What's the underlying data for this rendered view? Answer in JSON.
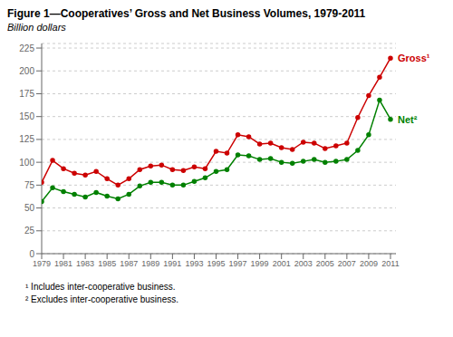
{
  "chart_data": {
    "type": "line",
    "title": "Figure 1—Cooperatives’ Gross and Net Business Volumes, 1979-2011",
    "ylabel": "Billion dollars",
    "footnotes": [
      "¹ Includes inter-cooperative business.",
      "² Excludes inter-cooperative business."
    ],
    "x": [
      1979,
      1980,
      1981,
      1982,
      1983,
      1984,
      1985,
      1986,
      1987,
      1988,
      1989,
      1990,
      1991,
      1992,
      1993,
      1994,
      1995,
      1996,
      1997,
      1998,
      1999,
      2000,
      2001,
      2002,
      2003,
      2004,
      2005,
      2006,
      2007,
      2008,
      2009,
      2010,
      2011
    ],
    "series": [
      {
        "name": "Gross¹",
        "color": "#cc0000",
        "marker": "circle",
        "values": [
          78,
          102,
          93,
          88,
          86,
          90,
          82,
          75,
          82,
          92,
          96,
          97,
          92,
          91,
          95,
          93,
          112,
          110,
          130,
          128,
          120,
          121,
          116,
          114,
          122,
          121,
          115,
          118,
          121,
          149,
          173,
          193,
          214
        ]
      },
      {
        "name": "Net²",
        "color": "#008000",
        "marker": "circle",
        "values": [
          57,
          72,
          68,
          65,
          62,
          67,
          63,
          60,
          65,
          74,
          78,
          78,
          75,
          75,
          79,
          83,
          90,
          92,
          108,
          107,
          103,
          104,
          100,
          99,
          101,
          103,
          100,
          101,
          103,
          113,
          130,
          168,
          147
        ]
      }
    ],
    "xlim": [
      1979,
      2011.5
    ],
    "xticks": [
      1979,
      1981,
      1983,
      1985,
      1987,
      1989,
      1991,
      1993,
      1995,
      1997,
      1999,
      2001,
      2003,
      2005,
      2007,
      2009,
      2011
    ],
    "ylim": [
      0,
      230
    ],
    "yticks": [
      0,
      25,
      50,
      75,
      100,
      125,
      150,
      175,
      200,
      225
    ],
    "grid": true
  }
}
